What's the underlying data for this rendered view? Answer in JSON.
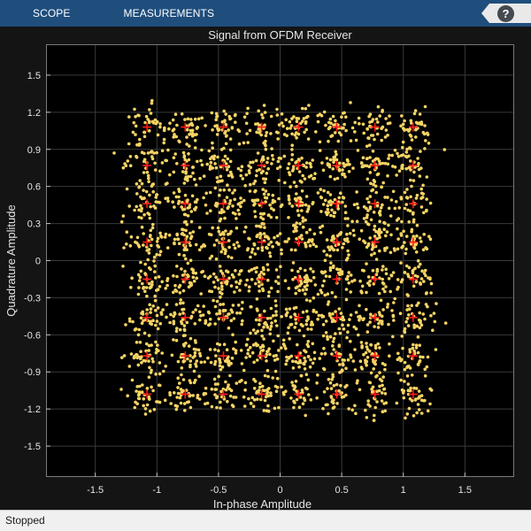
{
  "toolstrip": {
    "tabs": [
      "SCOPE",
      "MEASUREMENTS"
    ],
    "help_label": "?"
  },
  "status": {
    "text": "Stopped"
  },
  "colors": {
    "toolstrip": "#1f4e7d",
    "figure_background": "#141414",
    "axes_background": "#000000",
    "grid": "#3a3a3a",
    "text": "#e6e6e6",
    "received_points": "#f5d463",
    "reference_points": "#ff1a1a"
  },
  "chart_data": {
    "type": "scatter",
    "title": "Signal from OFDM Receiver",
    "xlabel": "In-phase Amplitude",
    "ylabel": "Quadrature Amplitude",
    "xlim": [
      -1.9,
      1.9
    ],
    "ylim": [
      -1.75,
      1.75
    ],
    "xticks": [
      -1.5,
      -1,
      -0.5,
      0,
      0.5,
      1,
      1.5
    ],
    "xtick_labels": [
      "-1.5",
      "-1",
      "-0.5",
      "0",
      "0.5",
      "1",
      "1.5"
    ],
    "yticks": [
      -1.5,
      -1.2,
      -0.9,
      -0.6,
      -0.3,
      0,
      0.3,
      0.6,
      0.9,
      1.2,
      1.5
    ],
    "ytick_labels": [
      "-1.5",
      "-1.2",
      "-0.9",
      "-0.6",
      "-0.3",
      "0",
      "0.3",
      "0.6",
      "0.9",
      "1.2",
      "1.5"
    ],
    "grid": true,
    "series": [
      {
        "style": "points",
        "color": "#f5d463",
        "description": "64-QAM received constellation, approx. 40 points scattered around each reference point (noise std approx. 0.08)",
        "cluster_centers_i": [
          -1.08,
          -0.77,
          -0.46,
          -0.15,
          0.15,
          0.46,
          0.77,
          1.08
        ],
        "cluster_centers_q": [
          -1.08,
          -0.77,
          -0.46,
          -0.15,
          0.15,
          0.46,
          0.77,
          1.08
        ]
      },
      {
        "style": "plus",
        "color": "#ff1a1a",
        "description": "64-QAM reference constellation (8 x 8 grid)",
        "i_values": [
          -1.08,
          -0.77,
          -0.46,
          -0.15,
          0.15,
          0.46,
          0.77,
          1.08
        ],
        "q_values": [
          -1.08,
          -0.77,
          -0.46,
          -0.15,
          0.15,
          0.46,
          0.77,
          1.08
        ]
      }
    ]
  }
}
